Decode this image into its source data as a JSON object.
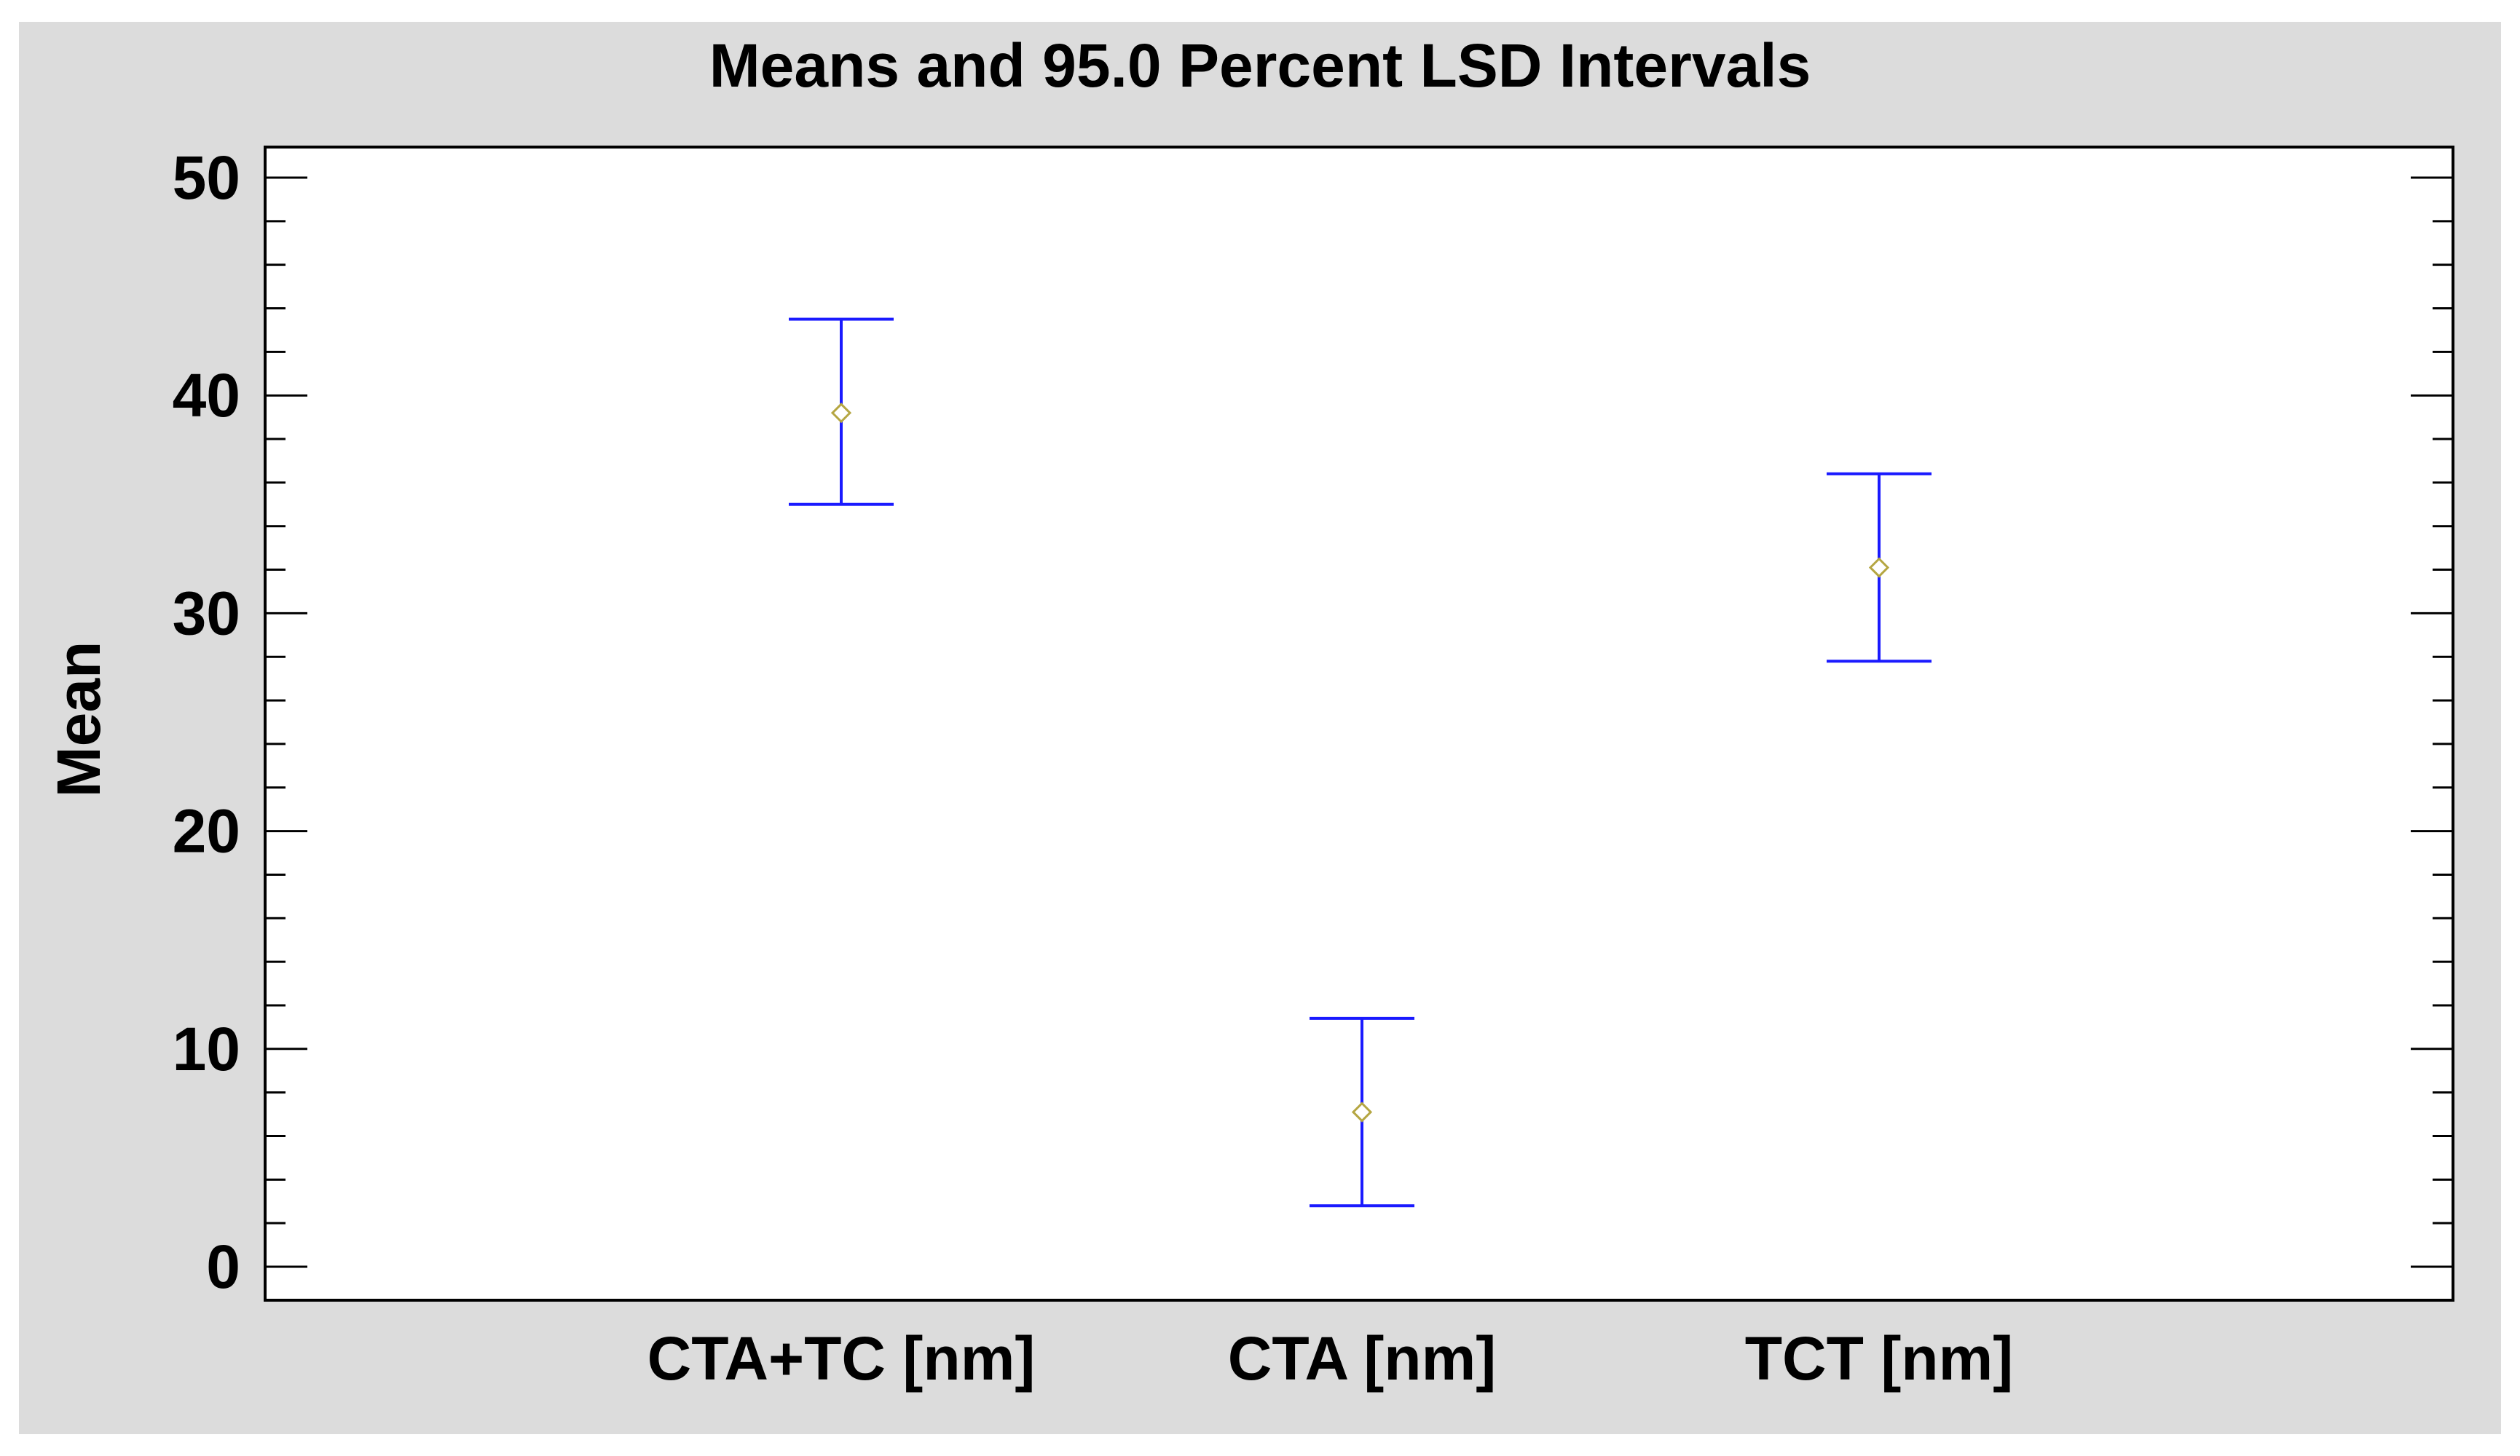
{
  "chart_data": {
    "type": "scatter",
    "title": "Means and 95.0 Percent LSD Intervals",
    "xlabel": "",
    "ylabel": "Mean",
    "ylim": [
      0,
      50
    ],
    "yticks": [
      "0",
      "10",
      "20",
      "30",
      "40",
      "50"
    ],
    "categories": [
      "CTA+TC [nm]",
      "CTA [nm]",
      "TCT [nm]"
    ],
    "means": [
      39.2,
      7.1,
      32.1
    ],
    "lower": [
      35.0,
      2.8,
      27.8
    ],
    "upper": [
      43.5,
      11.4,
      36.4
    ],
    "grid": false,
    "colors": {
      "interval": "#1a1aff",
      "mean_marker": "#b5a642",
      "frame": "#dcdcdc",
      "plot_bg": "#ffffff"
    }
  }
}
